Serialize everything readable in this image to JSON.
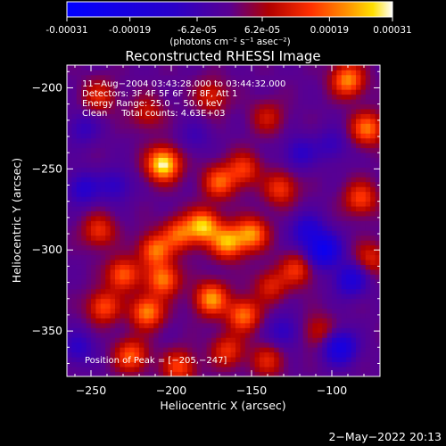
{
  "colorbar": {
    "tick_labels": [
      "-0.00031",
      "-0.00019",
      "-6.2e-05",
      "6.2e-05",
      "0.00019",
      "0.00031"
    ],
    "tick_values": [
      -0.00031,
      -0.00019,
      -6.2e-05,
      6.2e-05,
      0.00019,
      0.00031
    ],
    "range": [
      -0.00031,
      0.00031
    ],
    "units_label": "(photons cm⁻² s⁻¹ asec⁻²)"
  },
  "chart_data": {
    "type": "heatmap",
    "title": "Reconstructed RHESSI Image",
    "xlabel": "Heliocentric X (arcsec)",
    "ylabel": "Heliocentric Y (arcsec)",
    "xlim": [
      -265,
      -70
    ],
    "ylim": [
      -378,
      -186
    ],
    "x_ticks": [
      -250,
      -200,
      -150,
      -100
    ],
    "y_ticks": [
      -200,
      -250,
      -300,
      -350
    ],
    "x_tick_labels": [
      "−250",
      "−200",
      "−150",
      "−100"
    ],
    "y_tick_labels": [
      "−200",
      "−250",
      "−300",
      "−350"
    ],
    "annotations": [
      "11−Aug−2004 03:43:28.000 to 03:44:32.000",
      "Detectors: 3F 4F 5F 6F 7F 8F, Att 1",
      "Energy Range: 25.0 − 50.0 keV",
      "Clean     Total counts: 4.63E+03"
    ],
    "peak_label": "Position of Peak = [−205,−247]",
    "peak_position": [
      -205,
      -247
    ],
    "colormap": "red-temperature (blue negative, purple ~0, red/yellow/white positive)",
    "sources": [
      {
        "x": -205,
        "y": -247,
        "value": 0.00031
      },
      {
        "x": -180,
        "y": -285,
        "value": 0.00026
      },
      {
        "x": -165,
        "y": -295,
        "value": 0.00024
      },
      {
        "x": -150,
        "y": -290,
        "value": 0.00022
      },
      {
        "x": -195,
        "y": -290,
        "value": 0.00018
      },
      {
        "x": -210,
        "y": -300,
        "value": 0.0002
      },
      {
        "x": -230,
        "y": -315,
        "value": 0.00019
      },
      {
        "x": -205,
        "y": -318,
        "value": 0.00021
      },
      {
        "x": -175,
        "y": -330,
        "value": 0.00023
      },
      {
        "x": -155,
        "y": -340,
        "value": 0.0002
      },
      {
        "x": -215,
        "y": -338,
        "value": 0.00022
      },
      {
        "x": -242,
        "y": -335,
        "value": 0.00017
      },
      {
        "x": -170,
        "y": -258,
        "value": 0.00018
      },
      {
        "x": -155,
        "y": -250,
        "value": 0.00015
      },
      {
        "x": -132,
        "y": -262,
        "value": 0.00015
      },
      {
        "x": -245,
        "y": -288,
        "value": 0.00014
      },
      {
        "x": -122,
        "y": -312,
        "value": 0.00014
      },
      {
        "x": -138,
        "y": -322,
        "value": 0.00012
      },
      {
        "x": -90,
        "y": -195,
        "value": 0.00022
      },
      {
        "x": -78,
        "y": -225,
        "value": 0.0002
      },
      {
        "x": -82,
        "y": -268,
        "value": 0.00016
      },
      {
        "x": -76,
        "y": -305,
        "value": 0.00012
      },
      {
        "x": -245,
        "y": -205,
        "value": 0.00012
      },
      {
        "x": -215,
        "y": -215,
        "value": 0.0001
      },
      {
        "x": -175,
        "y": -205,
        "value": 0.00012
      },
      {
        "x": -140,
        "y": -218,
        "value": 0.0001
      },
      {
        "x": -225,
        "y": -365,
        "value": 0.00018
      },
      {
        "x": -195,
        "y": -372,
        "value": 0.00016
      },
      {
        "x": -165,
        "y": -362,
        "value": 0.00014
      },
      {
        "x": -140,
        "y": -368,
        "value": 0.00012
      },
      {
        "x": -108,
        "y": -350,
        "value": 0.0001
      },
      {
        "x": -105,
        "y": -300,
        "value": -0.00024
      },
      {
        "x": -115,
        "y": -288,
        "value": -0.00014
      },
      {
        "x": -88,
        "y": -318,
        "value": -0.00016
      },
      {
        "x": -95,
        "y": -360,
        "value": -0.0002
      },
      {
        "x": -255,
        "y": -262,
        "value": -0.00012
      },
      {
        "x": -235,
        "y": -260,
        "value": -0.0001
      },
      {
        "x": -258,
        "y": -360,
        "value": -0.0001
      },
      {
        "x": -120,
        "y": -240,
        "value": -0.0001
      },
      {
        "x": -100,
        "y": -235,
        "value": -8e-05
      },
      {
        "x": -130,
        "y": -350,
        "value": -0.0001
      },
      {
        "x": -255,
        "y": -225,
        "value": -8e-05
      },
      {
        "x": -185,
        "y": -230,
        "value": -6e-05
      }
    ],
    "grid": false
  },
  "timestamp": "2−May−2022 20:13"
}
